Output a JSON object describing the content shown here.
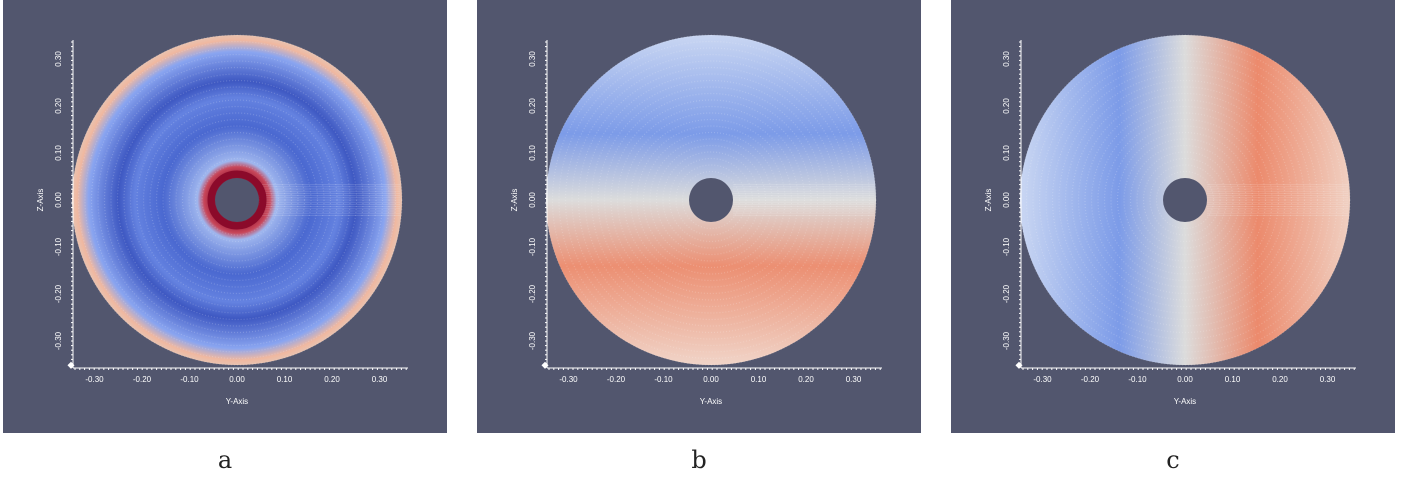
{
  "axes": {
    "x_title": "Y-Axis",
    "y_title": "Z-Axis",
    "x_ticks": [
      "-0.30",
      "-0.20",
      "-0.10",
      "0.00",
      "0.10",
      "0.20",
      "0.30"
    ],
    "y_ticks": [
      "-0.30",
      "-0.20",
      "-0.10",
      "0.00",
      "0.10",
      "0.20",
      "0.30"
    ]
  },
  "panels": [
    {
      "caption": "a"
    },
    {
      "caption": "b"
    },
    {
      "caption": "c"
    }
  ]
}
